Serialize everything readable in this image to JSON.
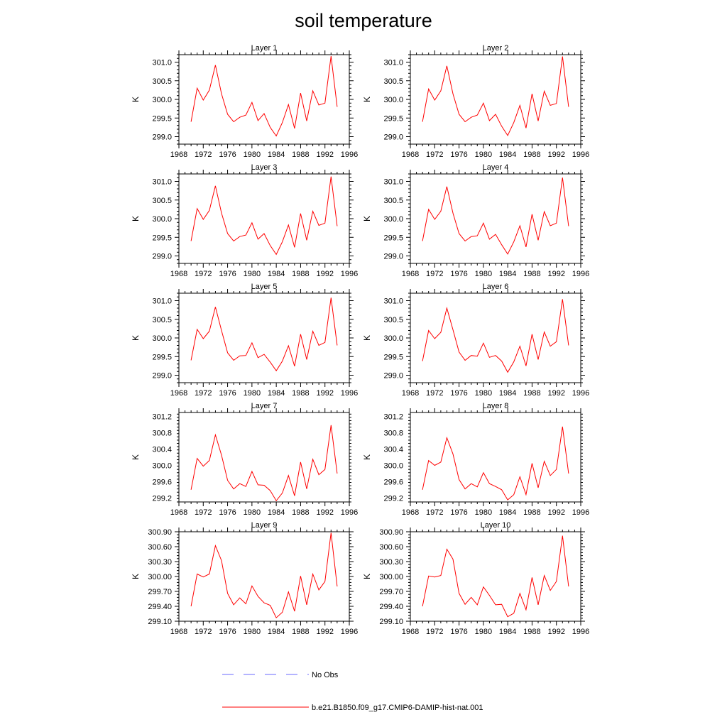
{
  "title": "soil temperature",
  "colors": {
    "model": "#ff0000",
    "obs": "#6a6aff",
    "axis": "#000000"
  },
  "legend": {
    "items": [
      {
        "label": "No Obs",
        "style": "dashed",
        "color": "#6a6aff"
      },
      {
        "label": "b.e21.B1850.f09_g17.CMIP6-DAMIP-hist-nat.001",
        "style": "solid",
        "color": "#ff0000"
      }
    ]
  },
  "chart_data": [
    {
      "type": "line",
      "title": "Layer 1",
      "ylabel": "K",
      "xlabel": "",
      "xlim": [
        1968,
        1996
      ],
      "ylim": [
        298.8,
        301.2
      ],
      "xticks": [
        1968,
        1972,
        1976,
        1980,
        1984,
        1988,
        1992,
        1996
      ],
      "yticks": [
        299.0,
        299.5,
        300.0,
        300.5,
        301.0
      ],
      "yticklabels": [
        "299.0",
        "299.5",
        "300.0",
        "300.5",
        "301.0"
      ],
      "series": [
        {
          "x": [
            1970,
            1971,
            1972,
            1973,
            1974,
            1975,
            1976,
            1977,
            1978,
            1979,
            1980,
            1981,
            1982,
            1983,
            1984,
            1985,
            1986,
            1987,
            1988,
            1989,
            1990,
            1991,
            1992,
            1993,
            1994
          ],
          "values": [
            299.4,
            300.3,
            299.98,
            300.25,
            300.92,
            300.15,
            299.6,
            299.4,
            299.52,
            299.58,
            299.92,
            299.43,
            299.62,
            299.25,
            299.02,
            299.38,
            299.86,
            299.22,
            300.17,
            299.42,
            300.23,
            299.85,
            299.9,
            301.16,
            299.8
          ]
        }
      ]
    },
    {
      "type": "line",
      "title": "Layer 2",
      "ylabel": "K",
      "xlabel": "",
      "xlim": [
        1968,
        1996
      ],
      "ylim": [
        298.8,
        301.2
      ],
      "xticks": [
        1968,
        1972,
        1976,
        1980,
        1984,
        1988,
        1992,
        1996
      ],
      "yticks": [
        299.0,
        299.5,
        300.0,
        300.5,
        301.0
      ],
      "yticklabels": [
        "299.0",
        "299.5",
        "300.0",
        "300.5",
        "301.0"
      ],
      "series": [
        {
          "x": [
            1970,
            1971,
            1972,
            1973,
            1974,
            1975,
            1976,
            1977,
            1978,
            1979,
            1980,
            1981,
            1982,
            1983,
            1984,
            1985,
            1986,
            1987,
            1988,
            1989,
            1990,
            1991,
            1992,
            1993,
            1994
          ],
          "values": [
            299.4,
            300.28,
            299.98,
            300.23,
            300.9,
            300.15,
            299.6,
            299.4,
            299.52,
            299.58,
            299.9,
            299.43,
            299.6,
            299.28,
            299.03,
            299.38,
            299.84,
            299.23,
            300.15,
            299.42,
            300.22,
            299.84,
            299.89,
            301.15,
            299.8
          ]
        }
      ]
    },
    {
      "type": "line",
      "title": "Layer 3",
      "ylabel": "K",
      "xlabel": "",
      "xlim": [
        1968,
        1996
      ],
      "ylim": [
        298.8,
        301.2
      ],
      "xticks": [
        1968,
        1972,
        1976,
        1980,
        1984,
        1988,
        1992,
        1996
      ],
      "yticks": [
        299.0,
        299.5,
        300.0,
        300.5,
        301.0
      ],
      "yticklabels": [
        "299.0",
        "299.5",
        "300.0",
        "300.5",
        "301.0"
      ],
      "series": [
        {
          "x": [
            1970,
            1971,
            1972,
            1973,
            1974,
            1975,
            1976,
            1977,
            1978,
            1979,
            1980,
            1981,
            1982,
            1983,
            1984,
            1985,
            1986,
            1987,
            1988,
            1989,
            1990,
            1991,
            1992,
            1993,
            1994
          ],
          "values": [
            299.4,
            300.27,
            299.98,
            300.22,
            300.88,
            300.15,
            299.6,
            299.4,
            299.52,
            299.56,
            299.89,
            299.45,
            299.6,
            299.28,
            299.04,
            299.38,
            299.83,
            299.23,
            300.14,
            299.42,
            300.2,
            299.82,
            299.88,
            301.13,
            299.8
          ]
        }
      ]
    },
    {
      "type": "line",
      "title": "Layer 4",
      "ylabel": "K",
      "xlabel": "",
      "xlim": [
        1968,
        1996
      ],
      "ylim": [
        298.8,
        301.2
      ],
      "xticks": [
        1968,
        1972,
        1976,
        1980,
        1984,
        1988,
        1992,
        1996
      ],
      "yticks": [
        299.0,
        299.5,
        300.0,
        300.5,
        301.0
      ],
      "yticklabels": [
        "299.0",
        "299.5",
        "300.0",
        "300.5",
        "301.0"
      ],
      "series": [
        {
          "x": [
            1970,
            1971,
            1972,
            1973,
            1974,
            1975,
            1976,
            1977,
            1978,
            1979,
            1980,
            1981,
            1982,
            1983,
            1984,
            1985,
            1986,
            1987,
            1988,
            1989,
            1990,
            1991,
            1992,
            1993,
            1994
          ],
          "values": [
            299.4,
            300.25,
            299.98,
            300.2,
            300.86,
            300.15,
            299.6,
            299.4,
            299.52,
            299.54,
            299.88,
            299.45,
            299.58,
            299.3,
            299.05,
            299.38,
            299.81,
            299.24,
            300.12,
            299.42,
            300.19,
            299.81,
            299.88,
            301.1,
            299.8
          ]
        }
      ]
    },
    {
      "type": "line",
      "title": "Layer 5",
      "ylabel": "K",
      "xlabel": "",
      "xlim": [
        1968,
        1996
      ],
      "ylim": [
        298.8,
        301.2
      ],
      "xticks": [
        1968,
        1972,
        1976,
        1980,
        1984,
        1988,
        1992,
        1996
      ],
      "yticks": [
        299.0,
        299.5,
        300.0,
        300.5,
        301.0
      ],
      "yticklabels": [
        "299.0",
        "299.5",
        "300.0",
        "300.5",
        "301.0"
      ],
      "series": [
        {
          "x": [
            1970,
            1971,
            1972,
            1973,
            1974,
            1975,
            1976,
            1977,
            1978,
            1979,
            1980,
            1981,
            1982,
            1983,
            1984,
            1985,
            1986,
            1987,
            1988,
            1989,
            1990,
            1991,
            1992,
            1993,
            1994
          ],
          "values": [
            299.4,
            300.23,
            299.98,
            300.18,
            300.83,
            300.2,
            299.6,
            299.4,
            299.52,
            299.53,
            299.87,
            299.47,
            299.56,
            299.35,
            299.12,
            299.38,
            299.79,
            299.24,
            300.1,
            299.42,
            300.18,
            299.8,
            299.88,
            301.08,
            299.8
          ]
        }
      ]
    },
    {
      "type": "line",
      "title": "Layer 6",
      "ylabel": "K",
      "xlabel": "",
      "xlim": [
        1968,
        1996
      ],
      "ylim": [
        298.8,
        301.2
      ],
      "xticks": [
        1968,
        1972,
        1976,
        1980,
        1984,
        1988,
        1992,
        1996
      ],
      "yticks": [
        299.0,
        299.5,
        300.0,
        300.5,
        301.0
      ],
      "yticklabels": [
        "299.0",
        "299.5",
        "300.0",
        "300.5",
        "301.0"
      ],
      "series": [
        {
          "x": [
            1970,
            1971,
            1972,
            1973,
            1974,
            1975,
            1976,
            1977,
            1978,
            1979,
            1980,
            1981,
            1982,
            1983,
            1984,
            1985,
            1986,
            1987,
            1988,
            1989,
            1990,
            1991,
            1992,
            1993,
            1994
          ],
          "values": [
            299.38,
            300.2,
            299.98,
            300.15,
            300.8,
            300.22,
            299.62,
            299.4,
            299.53,
            299.51,
            299.86,
            299.48,
            299.53,
            299.38,
            299.08,
            299.36,
            299.78,
            299.25,
            300.1,
            299.42,
            300.16,
            299.78,
            299.9,
            301.04,
            299.8
          ]
        }
      ]
    },
    {
      "type": "line",
      "title": "Layer 7",
      "ylabel": "K",
      "xlabel": "",
      "xlim": [
        1968,
        1996
      ],
      "ylim": [
        299.1,
        301.3
      ],
      "xticks": [
        1968,
        1972,
        1976,
        1980,
        1984,
        1988,
        1992,
        1996
      ],
      "yticks": [
        299.2,
        299.6,
        300.0,
        300.4,
        300.8,
        301.2
      ],
      "yticklabels": [
        "299.2",
        "299.6",
        "300.0",
        "300.4",
        "300.8",
        "301.2"
      ],
      "series": [
        {
          "x": [
            1970,
            1971,
            1972,
            1973,
            1974,
            1975,
            1976,
            1977,
            1978,
            1979,
            1980,
            1981,
            1982,
            1983,
            1984,
            1985,
            1986,
            1987,
            1988,
            1989,
            1990,
            1991,
            1992,
            1993,
            1994
          ],
          "values": [
            299.4,
            300.17,
            299.98,
            300.12,
            300.75,
            300.25,
            299.63,
            299.42,
            299.55,
            299.48,
            299.85,
            299.52,
            299.51,
            299.38,
            299.13,
            299.32,
            299.75,
            299.25,
            300.08,
            299.42,
            300.15,
            299.77,
            299.9,
            300.99,
            299.8
          ]
        }
      ]
    },
    {
      "type": "line",
      "title": "Layer 8",
      "ylabel": "K",
      "xlabel": "",
      "xlim": [
        1968,
        1996
      ],
      "ylim": [
        299.1,
        301.3
      ],
      "xticks": [
        1968,
        1972,
        1976,
        1980,
        1984,
        1988,
        1992,
        1996
      ],
      "yticks": [
        299.2,
        299.6,
        300.0,
        300.4,
        300.8,
        301.2
      ],
      "yticklabels": [
        "299.2",
        "299.6",
        "300.0",
        "300.4",
        "300.8",
        "301.2"
      ],
      "series": [
        {
          "x": [
            1970,
            1971,
            1972,
            1973,
            1974,
            1975,
            1976,
            1977,
            1978,
            1979,
            1980,
            1981,
            1982,
            1983,
            1984,
            1985,
            1986,
            1987,
            1988,
            1989,
            1990,
            1991,
            1992,
            1993,
            1994
          ],
          "values": [
            299.4,
            300.12,
            300.0,
            300.08,
            300.68,
            300.28,
            299.65,
            299.42,
            299.55,
            299.47,
            299.82,
            299.55,
            299.48,
            299.4,
            299.15,
            299.28,
            299.72,
            299.28,
            300.05,
            299.45,
            300.1,
            299.75,
            299.9,
            300.95,
            299.8
          ]
        }
      ]
    },
    {
      "type": "line",
      "title": "Layer 9",
      "ylabel": "K",
      "xlabel": "",
      "xlim": [
        1968,
        1996
      ],
      "ylim": [
        299.1,
        300.9
      ],
      "xticks": [
        1968,
        1972,
        1976,
        1980,
        1984,
        1988,
        1992,
        1996
      ],
      "yticks": [
        299.1,
        299.4,
        299.7,
        300.0,
        300.3,
        300.6,
        300.9
      ],
      "yticklabels": [
        "299.10",
        "299.40",
        "299.70",
        "300.00",
        "300.30",
        "300.60",
        "300.90"
      ],
      "series": [
        {
          "x": [
            1970,
            1971,
            1972,
            1973,
            1974,
            1975,
            1976,
            1977,
            1978,
            1979,
            1980,
            1981,
            1982,
            1983,
            1984,
            1985,
            1986,
            1987,
            1988,
            1989,
            1990,
            1991,
            1992,
            1993,
            1994
          ],
          "values": [
            299.4,
            300.05,
            299.99,
            300.05,
            300.62,
            300.32,
            299.66,
            299.43,
            299.57,
            299.45,
            299.81,
            299.6,
            299.47,
            299.42,
            299.17,
            299.28,
            299.69,
            299.3,
            300.01,
            299.43,
            300.05,
            299.73,
            299.9,
            300.88,
            299.8
          ]
        }
      ]
    },
    {
      "type": "line",
      "title": "Layer 10",
      "ylabel": "K",
      "xlabel": "",
      "xlim": [
        1968,
        1996
      ],
      "ylim": [
        299.1,
        300.9
      ],
      "xticks": [
        1968,
        1972,
        1976,
        1980,
        1984,
        1988,
        1992,
        1996
      ],
      "yticks": [
        299.1,
        299.4,
        299.7,
        300.0,
        300.3,
        300.6,
        300.9
      ],
      "yticklabels": [
        "299.10",
        "299.40",
        "299.70",
        "300.00",
        "300.30",
        "300.60",
        "300.90"
      ],
      "series": [
        {
          "x": [
            1970,
            1971,
            1972,
            1973,
            1974,
            1975,
            1976,
            1977,
            1978,
            1979,
            1980,
            1981,
            1982,
            1983,
            1984,
            1985,
            1986,
            1987,
            1988,
            1989,
            1990,
            1991,
            1992,
            1993,
            1994
          ],
          "values": [
            299.4,
            300.01,
            299.99,
            300.02,
            300.55,
            300.35,
            299.66,
            299.44,
            299.58,
            299.43,
            299.79,
            299.62,
            299.43,
            299.44,
            299.19,
            299.26,
            299.66,
            299.33,
            299.98,
            299.43,
            300.02,
            299.72,
            299.9,
            300.82,
            299.8
          ]
        }
      ]
    }
  ]
}
